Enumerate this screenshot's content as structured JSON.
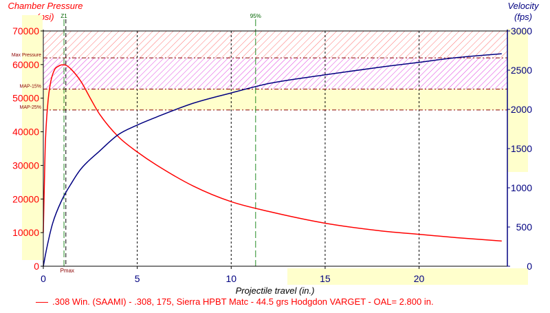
{
  "chart_data": {
    "type": "line",
    "left_axis_title": [
      "Chamber Pressure",
      "(psi)"
    ],
    "right_axis_title": [
      "Velocity",
      "(fps)"
    ],
    "xlabel": "Projectile travel (in.)",
    "xlim": [
      0,
      24.7
    ],
    "x_ticks": [
      0,
      5,
      10,
      15,
      20
    ],
    "ylim_left": [
      0,
      70000
    ],
    "y_ticks_left": [
      0,
      10000,
      20000,
      30000,
      40000,
      50000,
      60000,
      70000
    ],
    "ylim_right": [
      0,
      3000
    ],
    "y_ticks_right": [
      0,
      500,
      1000,
      1500,
      2000,
      2500,
      3000
    ],
    "reference_lines": [
      {
        "label": "Max Pressure",
        "value": 62000
      },
      {
        "label": "MAP-15%",
        "value": 52700
      },
      {
        "label": "MAP-25%",
        "value": 46500
      }
    ],
    "markers": [
      {
        "label": "Z1",
        "x": 1.1
      },
      {
        "label": "Pmax",
        "x": 1.2
      },
      {
        "label": "95%",
        "x": 11.3
      }
    ],
    "series": [
      {
        "name": ".308 Win. (SAAMI) - .308, 175, Sierra HPBT Matc - 44.5 grs Hodgdon VARGET - OAL= 2.800 in.",
        "axis": "left",
        "color": "#ff0000",
        "x": [
          0,
          0.1,
          0.25,
          0.4,
          0.6,
          0.8,
          1.0,
          1.2,
          1.5,
          2.0,
          2.5,
          3.0,
          4.0,
          5.0,
          6.0,
          8.0,
          10.0,
          12.0,
          15.0,
          18.0,
          20.0,
          22.0,
          24.4
        ],
        "values": [
          10000,
          35000,
          49000,
          55000,
          58500,
          59500,
          59900,
          59800,
          58500,
          55000,
          50000,
          45200,
          38500,
          34000,
          30200,
          23800,
          19200,
          16300,
          12800,
          10500,
          9500,
          8500,
          7500
        ]
      },
      {
        "name": "Velocity",
        "axis": "right",
        "color": "#000080",
        "x": [
          0,
          0.2,
          0.5,
          1.0,
          1.5,
          2.0,
          3.0,
          4.0,
          5.0,
          6.0,
          8.0,
          10.0,
          12.0,
          15.0,
          18.0,
          20.0,
          22.0,
          24.4
        ],
        "values": [
          0,
          250,
          550,
          850,
          1060,
          1240,
          1470,
          1680,
          1800,
          1900,
          2080,
          2210,
          2330,
          2440,
          2540,
          2600,
          2660,
          2710
        ]
      }
    ]
  }
}
